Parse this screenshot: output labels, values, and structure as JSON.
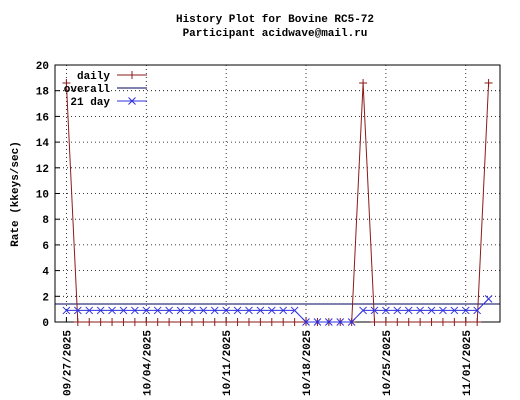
{
  "chart_data": {
    "type": "line",
    "title": "History Plot for Bovine RC5-72",
    "subtitle": "Participant acidwave@mail.ru",
    "y_label": "Rate (kkeys/sec)",
    "x": [
      "2025-09-27",
      "2025-09-28",
      "2025-09-29",
      "2025-09-30",
      "2025-10-01",
      "2025-10-02",
      "2025-10-03",
      "2025-10-04",
      "2025-10-05",
      "2025-10-06",
      "2025-10-07",
      "2025-10-08",
      "2025-10-09",
      "2025-10-10",
      "2025-10-11",
      "2025-10-12",
      "2025-10-13",
      "2025-10-14",
      "2025-10-15",
      "2025-10-16",
      "2025-10-17",
      "2025-10-18",
      "2025-10-19",
      "2025-10-20",
      "2025-10-21",
      "2025-10-22",
      "2025-10-23",
      "2025-10-24",
      "2025-10-25",
      "2025-10-26",
      "2025-10-27",
      "2025-10-28",
      "2025-10-29",
      "2025-10-30",
      "2025-10-31",
      "2025-11-01",
      "2025-11-02",
      "2025-11-03"
    ],
    "series": [
      {
        "name": "daily",
        "color": "#8b1a1a",
        "marker": "+",
        "values": [
          18.6,
          0,
          0,
          0,
          0,
          0,
          0,
          0,
          0,
          0,
          0,
          0,
          0,
          0,
          0,
          0,
          0,
          0,
          0,
          0,
          0,
          0,
          0,
          0,
          0,
          0,
          18.6,
          0,
          0,
          0,
          0,
          0,
          0,
          0,
          0,
          0,
          0,
          18.6
        ]
      },
      {
        "name": "21 day",
        "color": "#2f2fe0",
        "marker": "x",
        "values": [
          0.9,
          0.9,
          0.9,
          0.9,
          0.9,
          0.9,
          0.9,
          0.9,
          0.9,
          0.9,
          0.9,
          0.9,
          0.9,
          0.9,
          0.9,
          0.9,
          0.9,
          0.9,
          0.9,
          0.9,
          0.9,
          0,
          0,
          0,
          0,
          0,
          0.9,
          0.9,
          0.9,
          0.9,
          0.9,
          0.9,
          0.9,
          0.9,
          0.9,
          0.9,
          0.9,
          1.8
        ]
      }
    ],
    "overall": {
      "name": "overall",
      "color": "#00005a",
      "value": 1.4
    },
    "xlim": [
      "2025-09-26",
      "2025-11-04"
    ],
    "xticks": [
      {
        "value": "2025-09-27",
        "label": "09/27/2025"
      },
      {
        "value": "2025-10-04",
        "label": "10/04/2025"
      },
      {
        "value": "2025-10-11",
        "label": "10/11/2025"
      },
      {
        "value": "2025-10-18",
        "label": "10/18/2025"
      },
      {
        "value": "2025-10-25",
        "label": "10/25/2025"
      },
      {
        "value": "2025-11-01",
        "label": "11/01/2025"
      }
    ],
    "ylim": [
      0,
      20
    ],
    "yticks": [
      0,
      2,
      4,
      6,
      8,
      10,
      12,
      14,
      16,
      18,
      20
    ],
    "grid": true,
    "legend": "top-left"
  }
}
